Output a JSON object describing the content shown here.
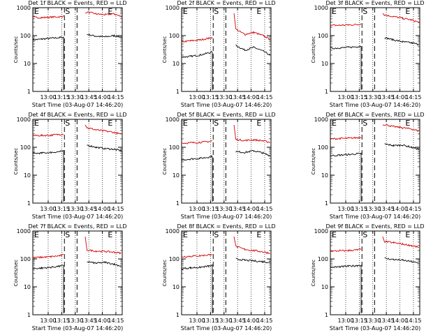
{
  "figure": {
    "xlabel": "Start Time (03-Aug-07 14:46:20)",
    "ylabel": "Counts/sec",
    "series_names": {
      "black": "Events",
      "red": "LLD"
    },
    "flare_labels": [
      "E",
      "S",
      "E"
    ],
    "colors": {
      "black": "#000000",
      "red": "#d40000"
    }
  },
  "chart_data": [
    {
      "type": "line",
      "title": "Det 1f BLACK = Events, RED = LLD",
      "xlabel": "Start Time (03-Aug-07 14:46:20)",
      "ylabel": "Counts/sec",
      "yscale": "log",
      "ylim": [
        1,
        1000
      ],
      "xticks": [
        "13:00",
        "13:15",
        "13:30",
        "13:45",
        "14:00",
        "14:15"
      ],
      "yticks": [
        "1",
        "10",
        "100",
        "1000"
      ],
      "x": [
        "12:43",
        "12:53",
        "13:03",
        "13:13",
        "13:17",
        "13:29",
        "13:33",
        "13:43",
        "13:53",
        "14:03",
        "14:13",
        "14:21"
      ],
      "series": [
        {
          "name": "Events",
          "values": [
            70,
            75,
            80,
            85,
            88,
            null,
            null,
            110,
            95,
            90,
            100,
            88
          ]
        },
        {
          "name": "LLD",
          "values": [
            450,
            440,
            460,
            470,
            500,
            null,
            null,
            700,
            600,
            560,
            600,
            480
          ]
        }
      ]
    },
    {
      "type": "line",
      "title": "Det 2f BLACK = Events, RED = LLD",
      "xlabel": "Start Time (03-Aug-07 14:46:20)",
      "ylabel": "Counts/sec",
      "yscale": "log",
      "ylim": [
        1,
        1000
      ],
      "xticks": [
        "13:00",
        "13:15",
        "13:30",
        "13:45",
        "14:00",
        "14:15"
      ],
      "yticks": [
        "1",
        "10",
        "100",
        "1000"
      ],
      "x": [
        "12:43",
        "12:53",
        "13:03",
        "13:13",
        "13:17",
        "13:29",
        "13:33",
        "13:43",
        "13:53",
        "14:03",
        "14:13",
        "14:21"
      ],
      "series": [
        {
          "name": "Events",
          "values": [
            17,
            18,
            20,
            24,
            26,
            null,
            null,
            45,
            30,
            38,
            28,
            20
          ]
        },
        {
          "name": "LLD",
          "values": [
            60,
            65,
            70,
            80,
            85,
            null,
            null,
            170,
            110,
            130,
            100,
            75
          ]
        }
      ]
    },
    {
      "type": "line",
      "title": "Det 3f BLACK = Events, RED = LLD",
      "xlabel": "Start Time (03-Aug-07 14:46:20)",
      "ylabel": "Counts/sec",
      "yscale": "log",
      "ylim": [
        1,
        1000
      ],
      "xticks": [
        "13:00",
        "13:15",
        "13:30",
        "13:45",
        "14:00",
        "14:15"
      ],
      "yticks": [
        "1",
        "10",
        "100",
        "1000"
      ],
      "x": [
        "12:43",
        "12:53",
        "13:03",
        "13:13",
        "13:17",
        "13:29",
        "13:33",
        "13:43",
        "13:53",
        "14:03",
        "14:13",
        "14:21"
      ],
      "series": [
        {
          "name": "Events",
          "values": [
            35,
            36,
            38,
            40,
            42,
            null,
            null,
            85,
            70,
            60,
            55,
            48
          ]
        },
        {
          "name": "LLD",
          "values": [
            230,
            235,
            240,
            250,
            260,
            null,
            null,
            550,
            480,
            420,
            360,
            300
          ]
        }
      ]
    },
    {
      "type": "line",
      "title": "Det 4f BLACK = Events, RED = LLD",
      "xlabel": "Start Time (03-Aug-07 14:46:20)",
      "ylabel": "Counts/sec",
      "yscale": "log",
      "ylim": [
        1,
        1000
      ],
      "xticks": [
        "13:00",
        "13:15",
        "13:30",
        "13:45",
        "14:00",
        "14:15"
      ],
      "yticks": [
        "1",
        "10",
        "100",
        "1000"
      ],
      "x": [
        "12:43",
        "12:53",
        "13:03",
        "13:13",
        "13:17",
        "13:29",
        "13:33",
        "13:43",
        "13:53",
        "14:03",
        "14:13",
        "14:21"
      ],
      "series": [
        {
          "name": "Events",
          "values": [
            60,
            62,
            65,
            70,
            72,
            null,
            null,
            120,
            100,
            90,
            85,
            75
          ]
        },
        {
          "name": "LLD",
          "values": [
            260,
            265,
            270,
            290,
            300,
            null,
            null,
            500,
            420,
            380,
            340,
            290
          ]
        }
      ]
    },
    {
      "type": "line",
      "title": "Det 5f BLACK = Events, RED = LLD",
      "xlabel": "Start Time (03-Aug-07 14:46:20)",
      "ylabel": "Counts/sec",
      "yscale": "log",
      "ylim": [
        1,
        1000
      ],
      "xticks": [
        "13:00",
        "13:15",
        "13:30",
        "13:45",
        "14:00",
        "14:15"
      ],
      "yticks": [
        "1",
        "10",
        "100",
        "1000"
      ],
      "x": [
        "12:43",
        "12:53",
        "13:03",
        "13:13",
        "13:17",
        "13:29",
        "13:33",
        "13:43",
        "13:53",
        "14:03",
        "14:13",
        "14:21"
      ],
      "series": [
        {
          "name": "Events",
          "values": [
            35,
            38,
            40,
            44,
            48,
            null,
            null,
            70,
            65,
            75,
            62,
            50
          ]
        },
        {
          "name": "LLD",
          "values": [
            140,
            145,
            150,
            160,
            170,
            null,
            null,
            190,
            175,
            185,
            170,
            150
          ]
        }
      ]
    },
    {
      "type": "line",
      "title": "Det 6f BLACK = Events, RED = LLD",
      "xlabel": "Start Time (03-Aug-07 14:46:20)",
      "ylabel": "Counts/sec",
      "yscale": "log",
      "ylim": [
        1,
        1000
      ],
      "xticks": [
        "13:00",
        "13:15",
        "13:30",
        "13:45",
        "14:00",
        "14:15"
      ],
      "yticks": [
        "1",
        "10",
        "100",
        "1000"
      ],
      "x": [
        "12:43",
        "12:53",
        "13:03",
        "13:13",
        "13:17",
        "13:29",
        "13:33",
        "13:43",
        "13:53",
        "14:03",
        "14:13",
        "14:21"
      ],
      "series": [
        {
          "name": "Events",
          "values": [
            50,
            52,
            55,
            58,
            60,
            null,
            null,
            130,
            115,
            120,
            100,
            85
          ]
        },
        {
          "name": "LLD",
          "values": [
            200,
            205,
            210,
            220,
            230,
            null,
            null,
            650,
            550,
            500,
            450,
            380
          ]
        }
      ]
    },
    {
      "type": "line",
      "title": "Det 7f BLACK = Events, RED = LLD",
      "xlabel": "Start Time (03-Aug-07 14:46:20)",
      "ylabel": "Counts/sec",
      "yscale": "log",
      "ylim": [
        1,
        1000
      ],
      "xticks": [
        "13:00",
        "13:15",
        "13:30",
        "13:45",
        "14:00",
        "14:15"
      ],
      "yticks": [
        "1",
        "10",
        "100",
        "1000"
      ],
      "x": [
        "12:43",
        "12:53",
        "13:03",
        "13:13",
        "13:17",
        "13:29",
        "13:33",
        "13:43",
        "13:53",
        "14:03",
        "14:13",
        "14:21"
      ],
      "series": [
        {
          "name": "Events",
          "values": [
            45,
            47,
            50,
            55,
            58,
            null,
            null,
            80,
            70,
            75,
            65,
            55
          ]
        },
        {
          "name": "LLD",
          "values": [
            110,
            115,
            120,
            130,
            140,
            null,
            null,
            210,
            190,
            185,
            175,
            160
          ]
        }
      ]
    },
    {
      "type": "line",
      "title": "Det 8f BLACK = Events, RED = LLD",
      "xlabel": "Start Time (03-Aug-07 14:46:20)",
      "ylabel": "Counts/sec",
      "yscale": "log",
      "ylim": [
        1,
        1000
      ],
      "xticks": [
        "13:00",
        "13:15",
        "13:30",
        "13:45",
        "14:00",
        "14:15"
      ],
      "yticks": [
        "1",
        "10",
        "100",
        "1000"
      ],
      "x": [
        "12:43",
        "12:53",
        "13:03",
        "13:13",
        "13:17",
        "13:29",
        "13:33",
        "13:43",
        "13:53",
        "14:03",
        "14:13",
        "14:21"
      ],
      "series": [
        {
          "name": "Events",
          "values": [
            45,
            48,
            50,
            55,
            58,
            null,
            null,
            100,
            90,
            85,
            80,
            75
          ]
        },
        {
          "name": "LLD",
          "values": [
            120,
            125,
            130,
            140,
            150,
            null,
            null,
            280,
            220,
            200,
            180,
            160
          ]
        }
      ]
    },
    {
      "type": "line",
      "title": "Det 9f BLACK = Events, RED = LLD",
      "xlabel": "Start Time (03-Aug-07 14:46:20)",
      "ylabel": "Counts/sec",
      "yscale": "log",
      "ylim": [
        1,
        1000
      ],
      "xticks": [
        "13:00",
        "13:15",
        "13:30",
        "13:45",
        "14:00",
        "14:15"
      ],
      "yticks": [
        "1",
        "10",
        "100",
        "1000"
      ],
      "x": [
        "12:43",
        "12:53",
        "13:03",
        "13:13",
        "13:17",
        "13:29",
        "13:33",
        "13:43",
        "13:53",
        "14:03",
        "14:13",
        "14:21"
      ],
      "series": [
        {
          "name": "Events",
          "values": [
            50,
            52,
            55,
            58,
            60,
            null,
            null,
            105,
            95,
            90,
            80,
            70
          ]
        },
        {
          "name": "LLD",
          "values": [
            190,
            195,
            200,
            210,
            220,
            null,
            null,
            420,
            380,
            340,
            300,
            260
          ]
        }
      ]
    }
  ]
}
